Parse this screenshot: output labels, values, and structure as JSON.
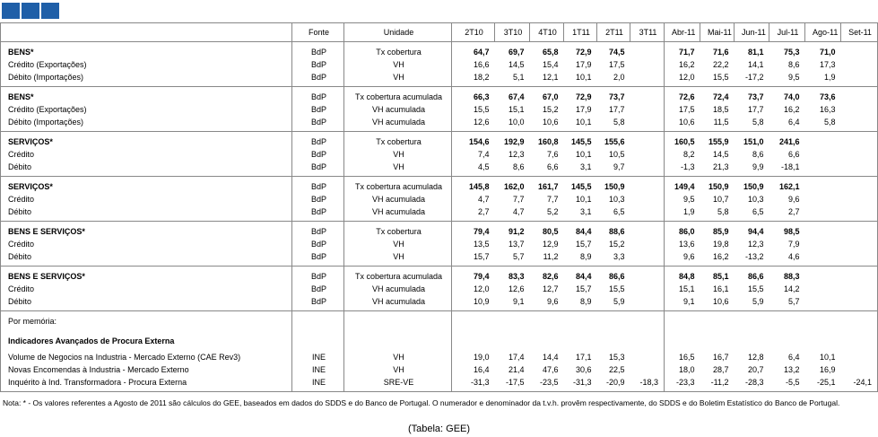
{
  "header": {
    "columns": [
      "Fonte",
      "Unidade",
      "2T10",
      "3T10",
      "4T10",
      "1T11",
      "2T11",
      "3T11",
      "Abr-11",
      "Mai-11",
      "Jun-11",
      "Jul-11",
      "Ago-11",
      "Set-11"
    ]
  },
  "groups": [
    {
      "rows": [
        [
          "BENS*",
          "BdP",
          "Tx cobertura",
          "64,7",
          "69,7",
          "65,8",
          "72,9",
          "74,5",
          null,
          "71,7",
          "71,6",
          "81,1",
          "75,3",
          "71,0",
          null
        ],
        [
          "Crédito (Exportações)",
          "BdP",
          "VH",
          "16,6",
          "14,5",
          "15,4",
          "17,9",
          "17,5",
          null,
          "16,2",
          "22,2",
          "14,1",
          "8,6",
          "17,3",
          null
        ],
        [
          "Débito (Importações)",
          "BdP",
          "VH",
          "18,2",
          "5,1",
          "12,1",
          "10,1",
          "2,0",
          null,
          "12,0",
          "15,5",
          "-17,2",
          "9,5",
          "1,9",
          null
        ]
      ]
    },
    {
      "rows": [
        [
          "BENS*",
          "BdP",
          "Tx cobertura acumulada",
          "66,3",
          "67,4",
          "67,0",
          "72,9",
          "73,7",
          null,
          "72,6",
          "72,4",
          "73,7",
          "74,0",
          "73,6",
          null
        ],
        [
          "Crédito (Exportações)",
          "BdP",
          "VH acumulada",
          "15,5",
          "15,1",
          "15,2",
          "17,9",
          "17,7",
          null,
          "17,5",
          "18,5",
          "17,7",
          "16,2",
          "16,3",
          null
        ],
        [
          "Débito (Importações)",
          "BdP",
          "VH acumulada",
          "12,6",
          "10,0",
          "10,6",
          "10,1",
          "5,8",
          null,
          "10,6",
          "11,5",
          "5,8",
          "6,4",
          "5,8",
          null
        ]
      ]
    },
    {
      "rows": [
        [
          "SERVIÇOS*",
          "BdP",
          "Tx cobertura",
          "154,6",
          "192,9",
          "160,8",
          "145,5",
          "155,6",
          null,
          "160,5",
          "155,9",
          "151,0",
          "241,6",
          null,
          null
        ],
        [
          "Crédito",
          "BdP",
          "VH",
          "7,4",
          "12,3",
          "7,6",
          "10,1",
          "10,5",
          null,
          "8,2",
          "14,5",
          "8,6",
          "6,6",
          null,
          null
        ],
        [
          "Débito",
          "BdP",
          "VH",
          "4,5",
          "8,6",
          "6,6",
          "3,1",
          "9,7",
          null,
          "-1,3",
          "21,3",
          "9,9",
          "-18,1",
          null,
          null
        ]
      ]
    },
    {
      "rows": [
        [
          "SERVIÇOS*",
          "BdP",
          "Tx cobertura acumulada",
          "145,8",
          "162,0",
          "161,7",
          "145,5",
          "150,9",
          null,
          "149,4",
          "150,9",
          "150,9",
          "162,1",
          null,
          null
        ],
        [
          "Crédito",
          "BdP",
          "VH acumulada",
          "4,7",
          "7,7",
          "7,7",
          "10,1",
          "10,3",
          null,
          "9,5",
          "10,7",
          "10,3",
          "9,6",
          null,
          null
        ],
        [
          "Débito",
          "BdP",
          "VH acumulada",
          "2,7",
          "4,7",
          "5,2",
          "3,1",
          "6,5",
          null,
          "1,9",
          "5,8",
          "6,5",
          "2,7",
          null,
          null
        ]
      ]
    },
    {
      "rows": [
        [
          "BENS E SERVIÇOS*",
          "BdP",
          "Tx cobertura",
          "79,4",
          "91,2",
          "80,5",
          "84,4",
          "88,6",
          null,
          "86,0",
          "85,9",
          "94,4",
          "98,5",
          null,
          null
        ],
        [
          "Crédito",
          "BdP",
          "VH",
          "13,5",
          "13,7",
          "12,9",
          "15,7",
          "15,2",
          null,
          "13,6",
          "19,8",
          "12,3",
          "7,9",
          null,
          null
        ],
        [
          "Débito",
          "BdP",
          "VH",
          "15,7",
          "5,7",
          "11,2",
          "8,9",
          "3,3",
          null,
          "9,6",
          "16,2",
          "-13,2",
          "4,6",
          null,
          null
        ]
      ]
    },
    {
      "rows": [
        [
          "BENS E SERVIÇOS*",
          "BdP",
          "Tx cobertura acumulada",
          "79,4",
          "83,3",
          "82,6",
          "84,4",
          "86,6",
          null,
          "84,8",
          "85,1",
          "86,6",
          "88,3",
          null,
          null
        ],
        [
          "Crédito",
          "BdP",
          "VH acumulada",
          "12,0",
          "12,6",
          "12,7",
          "15,7",
          "15,5",
          null,
          "15,1",
          "16,1",
          "15,5",
          "14,2",
          null,
          null
        ],
        [
          "Débito",
          "BdP",
          "VH acumulada",
          "10,9",
          "9,1",
          "9,6",
          "8,9",
          "5,9",
          null,
          "9,1",
          "10,6",
          "5,9",
          "5,7",
          null,
          null
        ]
      ]
    }
  ],
  "memo": {
    "title": "Por memória:",
    "subtitle": "Indicadores Avançados de Procura Externa",
    "rows": [
      [
        "Volume de Negocios na Industria - Mercado Externo (CAE Rev3)",
        "INE",
        "VH",
        "19,0",
        "17,4",
        "14,4",
        "17,1",
        "15,3",
        null,
        "16,5",
        "16,7",
        "12,8",
        "6,4",
        "10,1",
        null
      ],
      [
        "Novas Encomendas à Industria - Mercado Externo",
        "INE",
        "VH",
        "16,4",
        "21,4",
        "47,6",
        "30,6",
        "22,5",
        null,
        "18,0",
        "28,7",
        "20,7",
        "13,2",
        "16,9",
        null
      ],
      [
        "Inquérito à Ind. Transformadora - Procura Externa",
        "INE",
        "SRE-VE",
        "-31,3",
        "-17,5",
        "-23,5",
        "-31,3",
        "-20,9",
        "-18,3",
        "-23,3",
        "-11,2",
        "-28,3",
        "-5,5",
        "-25,1",
        "-24,1"
      ]
    ]
  },
  "note": "Nota: * - Os valores referentes a Agosto de 2011 são cálculos do GEE, baseados em dados do SDDS e do Banco de Portugal. O numerador e denominador da t.v.h. provêm respectivamente, do SDDS e do Boletim Estatístico do Banco de Portugal.",
  "caption": "(Tabela: GEE)"
}
